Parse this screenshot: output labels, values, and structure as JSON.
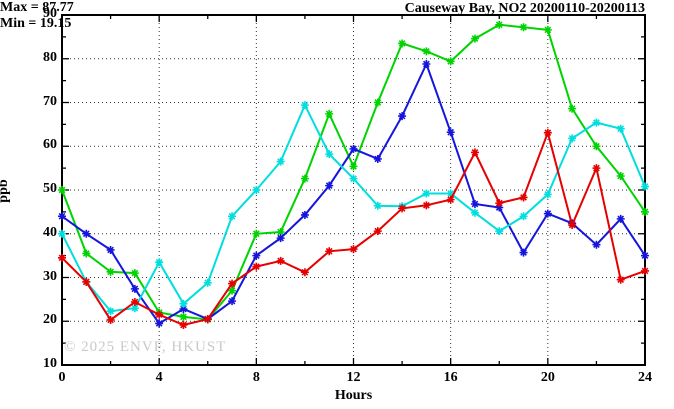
{
  "title": "Causeway Bay, NO2 20200110-20200113",
  "legend": {
    "max_label": "Max = 87.77",
    "min_label": "Min = 19.15"
  },
  "watermark": "© 2025 ENVF, HKUST",
  "chart_data": {
    "type": "line",
    "title": "Causeway Bay, NO2 20200110-20200113",
    "xlabel": "Hours",
    "ylabel": "ppb",
    "xlim": [
      0,
      24
    ],
    "ylim": [
      10,
      90
    ],
    "x_major_ticks": [
      0,
      4,
      8,
      12,
      16,
      20,
      24
    ],
    "x_minor_ticks": [
      2,
      6,
      10,
      14,
      18,
      22
    ],
    "y_major_ticks": [
      10,
      20,
      30,
      40,
      50,
      60,
      70,
      80,
      90
    ],
    "y_minor_ticks": [
      15,
      25,
      35,
      45,
      55,
      65,
      75,
      85
    ],
    "grid": true,
    "legend_position": "top-right-inside",
    "max_value": 87.77,
    "min_value": 19.15,
    "x": [
      0,
      1,
      2,
      3,
      4,
      5,
      6,
      7,
      8,
      9,
      10,
      11,
      12,
      13,
      14,
      15,
      16,
      17,
      18,
      19,
      20,
      21,
      22,
      23,
      24
    ],
    "series": [
      {
        "name": "green-line",
        "color": "#00d400",
        "values": [
          50,
          35.5,
          31.3,
          31,
          22,
          21,
          20.4,
          27,
          40,
          40.4,
          52.6,
          67.4,
          55.4,
          70,
          83.5,
          81.7,
          79.4,
          84.6,
          87.77,
          87.2,
          86.6,
          68.6,
          60,
          53.2,
          45
        ]
      },
      {
        "name": "blue-line",
        "color": "#1515dd",
        "values": [
          44,
          40,
          36.3,
          27.4,
          19.5,
          22.8,
          20.5,
          24.6,
          35,
          39,
          44.3,
          51,
          59.4,
          57.1,
          66.9,
          78.8,
          63.2,
          46.8,
          46,
          35.7,
          44.6,
          42.4,
          37.5,
          43.4,
          35
        ]
      },
      {
        "name": "cyan-line",
        "color": "#00dede",
        "values": [
          40,
          29,
          22.3,
          23,
          33.5,
          24,
          28.8,
          44,
          50,
          56.5,
          69.4,
          58.2,
          52.6,
          46.4,
          46.3,
          49.2,
          49.2,
          44.8,
          40.6,
          44,
          49,
          61.8,
          65.4,
          64,
          50.8
        ]
      },
      {
        "name": "red-line",
        "color": "#e60000",
        "values": [
          34.5,
          29,
          20.3,
          24.4,
          21.5,
          19.15,
          20.5,
          28.6,
          32.5,
          33.8,
          31.2,
          36,
          36.5,
          40.6,
          45.8,
          46.5,
          47.8,
          58.6,
          47,
          48.3,
          63.1,
          42,
          55,
          29.5,
          31.5
        ]
      }
    ]
  }
}
